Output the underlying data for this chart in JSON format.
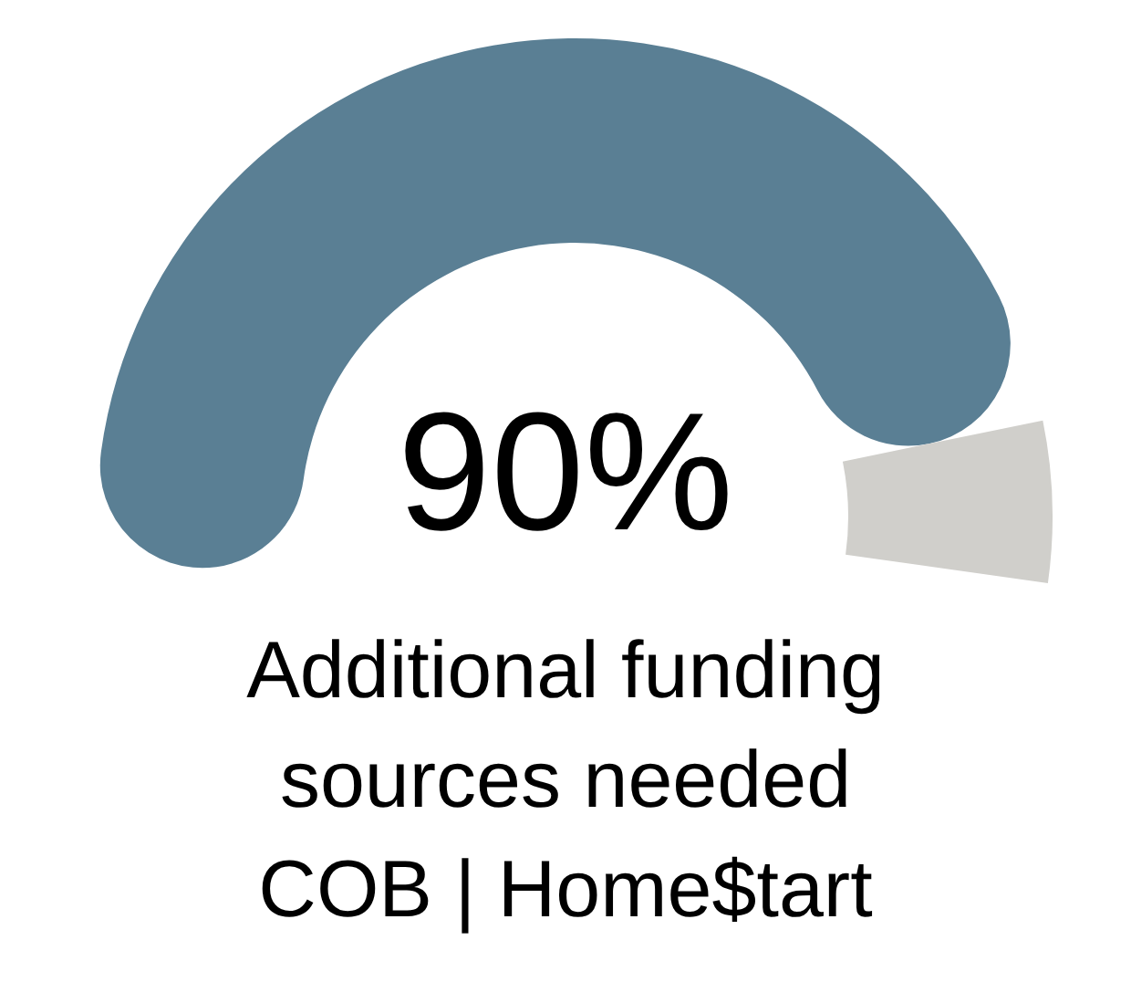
{
  "chart_data": {
    "type": "donut",
    "title": "Additional funding sources needed",
    "annotations": [
      "COB | Home$tart"
    ],
    "categories": [
      null,
      null
    ],
    "values": [
      90,
      10
    ],
    "colors": [
      "#5a7f94",
      "#d0cfcb"
    ],
    "value_labels": [
      "90%",
      null
    ]
  }
}
